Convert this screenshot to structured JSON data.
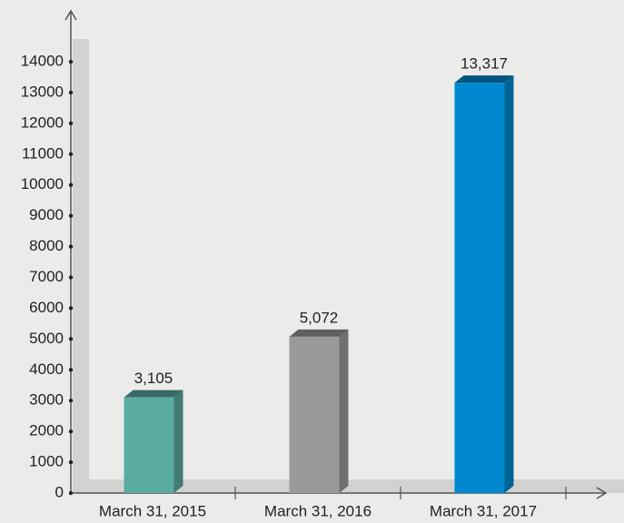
{
  "chart_data": {
    "type": "bar3d",
    "categories": [
      "March 31, 2015",
      "March 31, 2016",
      "March 31, 2017"
    ],
    "values": [
      3105,
      5072,
      13317
    ],
    "value_labels": [
      "3,105",
      "5,072",
      "13,317"
    ],
    "colors": [
      "#5aaba0",
      "#9a9a99",
      "#0089d0"
    ],
    "ylim": [
      0,
      14000
    ],
    "yticks": [
      0,
      1000,
      2000,
      3000,
      4000,
      5000,
      6000,
      7000,
      8000,
      9000,
      10000,
      11000,
      12000,
      13000,
      14000
    ]
  }
}
